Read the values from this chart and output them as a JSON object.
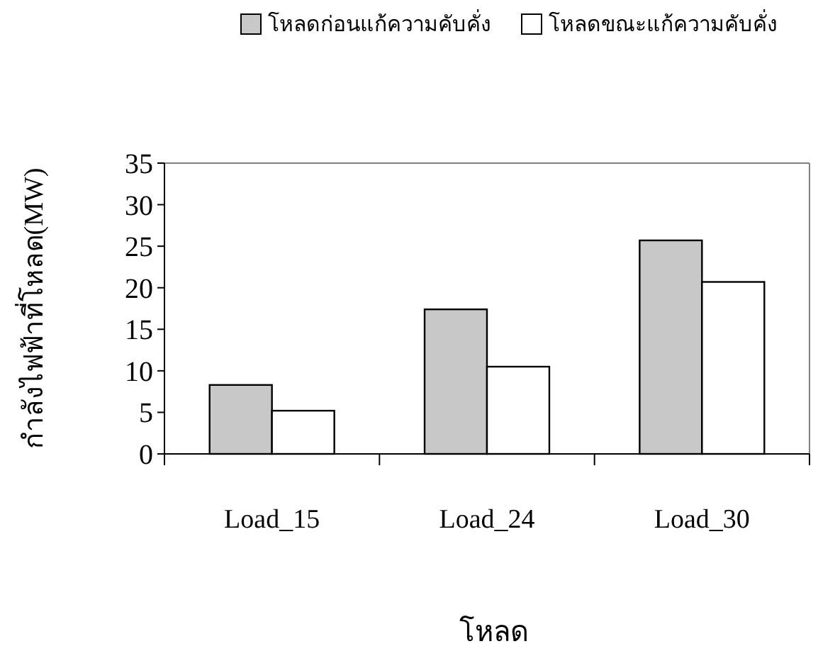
{
  "chart_data": {
    "type": "bar",
    "xlabel": "โหลด",
    "ylabel": "กำลังไฟฟ้าที่โหลด(MW)",
    "categories": [
      "Load_15",
      "Load_24",
      "Load_30"
    ],
    "series": [
      {
        "name": "โหลดก่อนแก้ความคับคั่ง",
        "color": "#c8c8c8",
        "values": [
          8.3,
          17.4,
          25.7
        ]
      },
      {
        "name": "โหลดขณะแก้ความคับคั่ง",
        "color": "#ffffff",
        "values": [
          5.2,
          10.5,
          20.7
        ]
      }
    ],
    "ylim": [
      0,
      35
    ],
    "yticks": [
      0,
      5,
      10,
      15,
      20,
      25,
      30,
      35
    ],
    "grid": false,
    "legend": "top"
  }
}
